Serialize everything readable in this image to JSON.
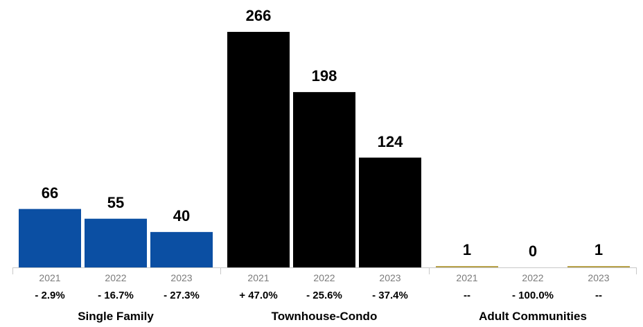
{
  "chart_data": {
    "type": "bar",
    "groups": [
      {
        "name": "Single Family",
        "color": "#0b4fa3",
        "bars": [
          {
            "year": "2021",
            "value": 66,
            "value_label": "66",
            "change": "- 2.9%"
          },
          {
            "year": "2022",
            "value": 55,
            "value_label": "55",
            "change": "- 16.7%"
          },
          {
            "year": "2023",
            "value": 40,
            "value_label": "40",
            "change": "- 27.3%"
          }
        ]
      },
      {
        "name": "Townhouse-Condo",
        "color": "#000000",
        "bars": [
          {
            "year": "2021",
            "value": 266,
            "value_label": "266",
            "change": "+ 47.0%"
          },
          {
            "year": "2022",
            "value": 198,
            "value_label": "198",
            "change": "- 25.6%"
          },
          {
            "year": "2023",
            "value": 124,
            "value_label": "124",
            "change": "- 37.4%"
          }
        ]
      },
      {
        "name": "Adult Communities",
        "color": "#b8a24a",
        "bars": [
          {
            "year": "2021",
            "value": 1,
            "value_label": "1",
            "change": "--"
          },
          {
            "year": "2022",
            "value": 0,
            "value_label": "0",
            "change": "- 100.0%"
          },
          {
            "year": "2023",
            "value": 1,
            "value_label": "1",
            "change": "--"
          }
        ]
      }
    ],
    "ylim": [
      0,
      266
    ],
    "grid": false,
    "axis_color": "#c8c8c8"
  }
}
